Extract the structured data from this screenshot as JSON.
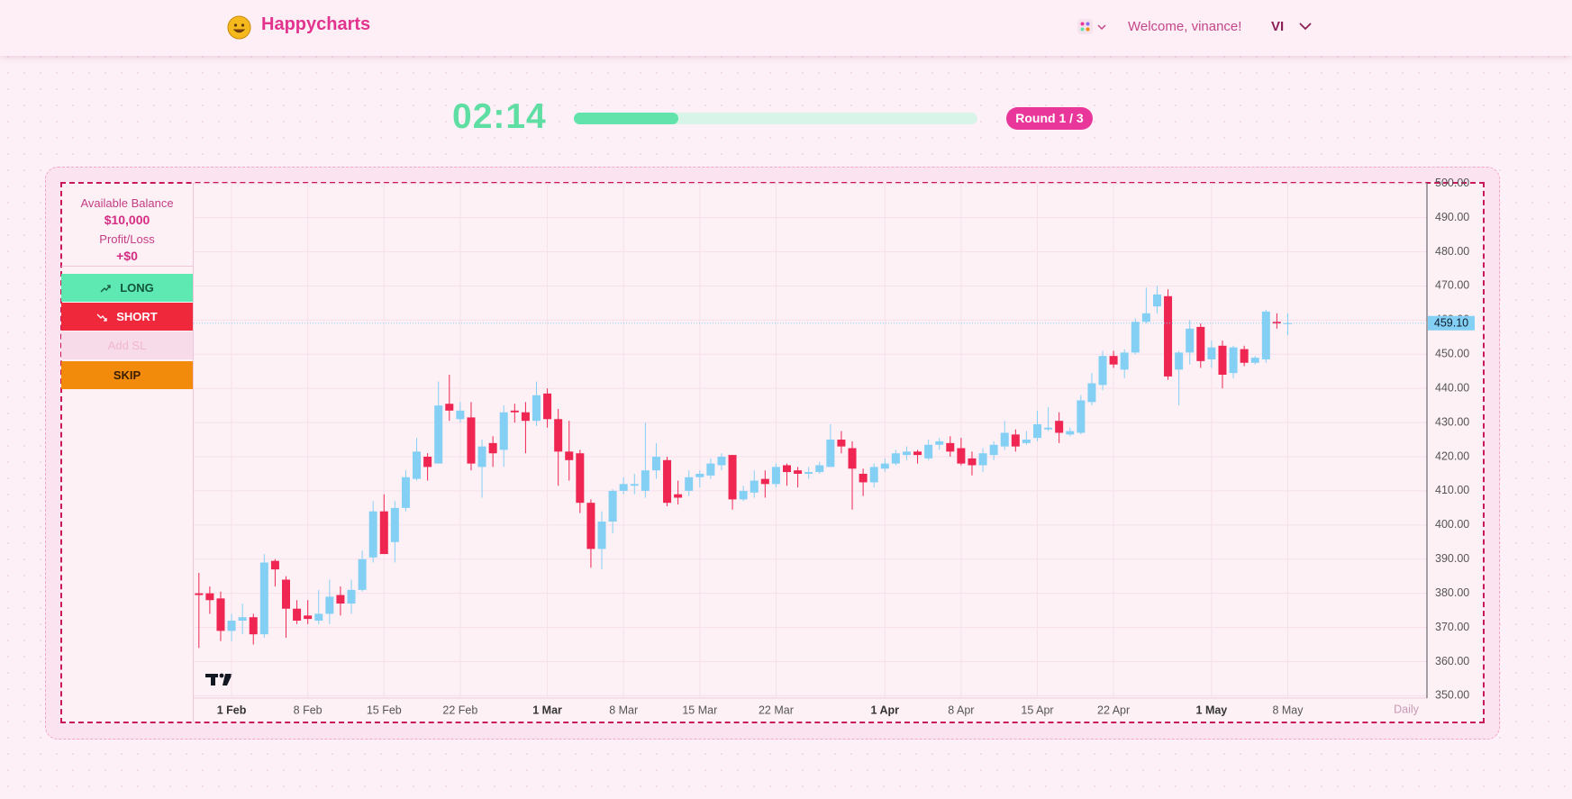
{
  "header": {
    "brand": "Happycharts",
    "welcome": "Welcome, vinance!",
    "user_initials": "VI"
  },
  "game": {
    "timer": "02:14",
    "progress": 26,
    "round": "Round 1 / 3"
  },
  "sidebar": {
    "balance_label": "Available Balance",
    "balance": "$10,000",
    "pnl_label": "Profit/Loss",
    "pnl": "+$0",
    "buttons": [
      "LONG",
      "SHORT",
      "Add SL",
      "SKIP"
    ]
  },
  "chart_data": {
    "type": "candlestick",
    "categories": [
      null,
      null,
      null,
      "1 Feb",
      null,
      null,
      null,
      null,
      null,
      null,
      "8 Feb",
      null,
      null,
      null,
      null,
      null,
      null,
      "15 Feb",
      null,
      null,
      null,
      null,
      null,
      null,
      "22 Feb",
      null,
      null,
      null,
      null,
      null,
      null,
      null,
      "1 Mar",
      null,
      null,
      null,
      null,
      null,
      null,
      "8 Mar",
      null,
      null,
      null,
      null,
      null,
      null,
      "15 Mar",
      null,
      null,
      null,
      null,
      null,
      null,
      "22 Mar",
      null,
      null,
      null,
      null,
      null,
      null,
      null,
      null,
      null,
      "1 Apr",
      null,
      null,
      null,
      null,
      null,
      null,
      "8 Apr",
      null,
      null,
      null,
      null,
      null,
      null,
      "15 Apr",
      null,
      null,
      null,
      null,
      null,
      null,
      "22 Apr",
      null,
      null,
      null,
      null,
      null,
      null,
      null,
      null,
      "1 May",
      null,
      null,
      null,
      null,
      null,
      null,
      "8 May"
    ],
    "open": [
      380,
      380,
      378.5,
      369,
      372,
      373,
      368,
      389.5,
      384,
      375.5,
      373.5,
      372,
      374,
      379.5,
      377,
      381,
      390.5,
      404,
      395,
      405,
      413.5,
      420,
      418,
      435.5,
      431,
      431.5,
      417,
      424,
      422,
      433.5,
      433,
      430.5,
      438.5,
      431,
      421.5,
      421,
      406.5,
      393,
      401,
      410,
      411.5,
      410,
      416,
      419,
      409,
      410,
      414,
      414.5,
      417.5,
      420.5,
      407.5,
      409.5,
      413.5,
      412,
      417.5,
      416,
      415,
      415.5,
      417,
      425,
      422.5,
      415,
      412.5,
      416.5,
      418,
      420.5,
      421.5,
      419.5,
      423.5,
      424,
      422.5,
      419.5,
      417.5,
      420.5,
      423,
      426.5,
      424,
      425.5,
      428,
      430.5,
      426.5,
      427,
      436,
      441,
      449.5,
      445.5,
      450.5,
      459.5,
      464,
      467,
      445.5,
      450.5,
      458,
      448.5,
      452.5,
      444.5,
      451.5,
      447.5,
      448.5,
      459.5,
      459
    ],
    "high": [
      386,
      382,
      380.5,
      374,
      377,
      374,
      391.5,
      390,
      385,
      378,
      378,
      381,
      384,
      382,
      384,
      392.5,
      407,
      409,
      407,
      416,
      425.5,
      421,
      442,
      444,
      436,
      436,
      425,
      426,
      435,
      435.5,
      436,
      442,
      440,
      434,
      430.5,
      422,
      407.5,
      404,
      410.5,
      414,
      415,
      430,
      424,
      420,
      413,
      416,
      416,
      419.5,
      421,
      420.5,
      411.5,
      416,
      416,
      418,
      418,
      417,
      417,
      418.5,
      429.5,
      427.5,
      424.5,
      416.5,
      418,
      419.5,
      422,
      423,
      422,
      425,
      425.5,
      426,
      425.5,
      421.5,
      422.5,
      424.5,
      430.5,
      428,
      427.5,
      433.5,
      434.5,
      433,
      428.5,
      438,
      444.5,
      451,
      451,
      451.5,
      460.5,
      469.5,
      470,
      469,
      451,
      460,
      459,
      454,
      454,
      452.5,
      452.5,
      449.5,
      463,
      462,
      462
    ],
    "low": [
      364,
      374,
      366,
      366,
      368,
      365,
      367,
      382,
      367,
      371,
      371,
      371,
      371,
      373.5,
      374,
      380.5,
      389,
      391.5,
      389,
      404,
      413,
      413,
      418,
      430.5,
      430,
      416,
      408,
      417,
      417,
      430,
      421,
      429,
      428.5,
      411.5,
      413,
      403.5,
      387.5,
      387,
      397.5,
      409,
      409,
      408,
      413.5,
      405.5,
      406,
      408.5,
      411,
      413.5,
      416,
      404.5,
      407,
      408,
      408,
      411,
      411.5,
      411,
      413.5,
      415,
      417,
      421,
      404.5,
      408.5,
      411,
      415.5,
      417.5,
      419,
      418,
      419,
      422,
      420,
      417.5,
      414.5,
      415.5,
      419,
      422,
      421.5,
      423.5,
      424.5,
      427.5,
      424,
      426,
      426.5,
      435,
      439.5,
      446,
      443,
      450,
      459,
      462,
      442.5,
      435,
      447,
      446,
      446,
      440,
      443,
      446.5,
      447,
      447.5,
      457.5,
      455.5
    ],
    "close": [
      379.5,
      378,
      369,
      372,
      373,
      368,
      389,
      387,
      375.5,
      372,
      372.5,
      374,
      379,
      377,
      381,
      390,
      404,
      391.5,
      405,
      414,
      421.5,
      417,
      435,
      433.5,
      433.5,
      418,
      423,
      421,
      433,
      433,
      430.5,
      438,
      431,
      421.5,
      419,
      406.5,
      393,
      401,
      410,
      412,
      412,
      416,
      420,
      406.5,
      408,
      414,
      415,
      418,
      420,
      407.5,
      410,
      413,
      412,
      417,
      415.5,
      415,
      415.5,
      417.5,
      425,
      423,
      416.5,
      412.5,
      417,
      418,
      421,
      421.5,
      420.5,
      423.5,
      424.5,
      421.5,
      418,
      417.5,
      421,
      423.5,
      427,
      423,
      425,
      429.5,
      428.5,
      427,
      427.5,
      436.5,
      441.5,
      449.5,
      447,
      450.5,
      459.5,
      462,
      467.5,
      443.5,
      450.5,
      457.5,
      448,
      452,
      444,
      452,
      447.5,
      449,
      462.5,
      459,
      459.1
    ],
    "up_color": "#84d0f4",
    "down_color": "#ef2552",
    "ylim": [
      350,
      500
    ],
    "yticks": [
      {
        "value": 350,
        "label": "350.00"
      },
      {
        "value": 360,
        "label": "360.00"
      },
      {
        "value": 370,
        "label": "370.00"
      },
      {
        "value": 380,
        "label": "380.00"
      },
      {
        "value": 390,
        "label": "390.00"
      },
      {
        "value": 400,
        "label": "400.00"
      },
      {
        "value": 410,
        "label": "410.00"
      },
      {
        "value": 420,
        "label": "420.00"
      },
      {
        "value": 430,
        "label": "430.00"
      },
      {
        "value": 440,
        "label": "440.00"
      },
      {
        "value": 450,
        "label": "450.00"
      },
      {
        "value": 460,
        "label": "460.00"
      },
      {
        "value": 470,
        "label": "470.00"
      },
      {
        "value": 480,
        "label": "480.00"
      },
      {
        "value": 490,
        "label": "490.00"
      },
      {
        "value": 500,
        "label": "500.00"
      }
    ],
    "last_price": {
      "value": 459.1,
      "label": "459.10"
    },
    "interval": "Daily",
    "grid": true
  }
}
